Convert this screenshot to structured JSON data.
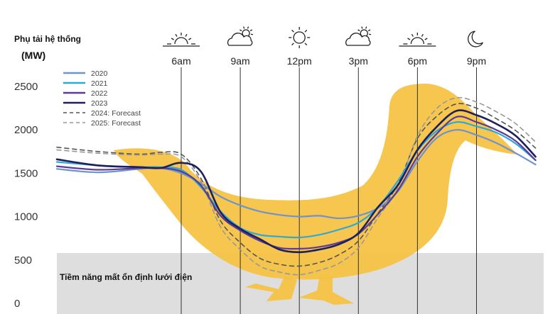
{
  "chart_data": {
    "type": "line",
    "ylabel": "Phụ tải hệ thống",
    "yunit": "(MW)",
    "ylim": [
      0,
      2600
    ],
    "yticks": [
      0,
      500,
      1000,
      1500,
      2000,
      2500
    ],
    "time_markers": [
      {
        "label": "6am",
        "hour": 6,
        "icon": "sunrise-icon"
      },
      {
        "label": "9am",
        "hour": 9,
        "icon": "partly-cloudy-icon"
      },
      {
        "label": "12pm",
        "hour": 12,
        "icon": "sun-icon"
      },
      {
        "label": "3pm",
        "hour": 15,
        "icon": "partly-cloudy-icon"
      },
      {
        "label": "6pm",
        "hour": 18,
        "icon": "sunset-icon"
      },
      {
        "label": "9pm",
        "hour": 21,
        "icon": "moon-icon"
      }
    ],
    "x_hours": [
      0,
      2,
      4,
      5,
      6,
      7,
      8,
      9,
      10,
      11,
      12,
      13,
      14,
      15,
      16,
      17,
      18,
      19,
      20,
      21,
      22,
      23,
      24
    ],
    "series": [
      {
        "name": "2020",
        "color": "#6f93cc",
        "dashed": false,
        "width": 2.2,
        "values": [
          1550,
          1510,
          1550,
          1560,
          1500,
          1380,
          1230,
          1130,
          1060,
          1020,
          1000,
          1010,
          980,
          1010,
          1100,
          1290,
          1640,
          1910,
          2000,
          1940,
          1850,
          1730,
          1600
        ]
      },
      {
        "name": "2021",
        "color": "#2ea9d6",
        "dashed": false,
        "width": 2.2,
        "values": [
          1630,
          1590,
          1570,
          1570,
          1540,
          1340,
          1060,
          870,
          790,
          770,
          760,
          790,
          850,
          930,
          1110,
          1410,
          1760,
          1990,
          2090,
          2040,
          1970,
          1840,
          1650
        ]
      },
      {
        "name": "2022",
        "color": "#5b3b95",
        "dashed": false,
        "width": 2.2,
        "values": [
          1580,
          1540,
          1560,
          1560,
          1520,
          1360,
          1010,
          840,
          720,
          640,
          630,
          650,
          700,
          800,
          1030,
          1300,
          1690,
          1960,
          2150,
          2090,
          2000,
          1870,
          1650
        ]
      },
      {
        "name": "2023",
        "color": "#1d1f5e",
        "dashed": false,
        "width": 2.6,
        "values": [
          1660,
          1590,
          1570,
          1560,
          1620,
          1520,
          1050,
          860,
          740,
          620,
          590,
          620,
          680,
          810,
          1110,
          1360,
          1770,
          2040,
          2220,
          2170,
          2070,
          1930,
          1690
        ]
      },
      {
        "name": "2024: Forecast",
        "color": "#555555",
        "dashed": true,
        "width": 1.6,
        "values": [
          1800,
          1750,
          1720,
          1740,
          1720,
          1440,
          950,
          700,
          520,
          450,
          430,
          470,
          560,
          720,
          1040,
          1370,
          1900,
          2160,
          2300,
          2250,
          2130,
          1990,
          1790
        ]
      },
      {
        "name": "2025: Forecast",
        "color": "#999999",
        "dashed": true,
        "width": 1.6,
        "values": [
          1770,
          1730,
          1710,
          1720,
          1690,
          1400,
          880,
          620,
          430,
          360,
          330,
          380,
          460,
          640,
          990,
          1330,
          1930,
          2250,
          2370,
          2320,
          2210,
          2070,
          1860
        ]
      }
    ],
    "grid": false,
    "legend_position": "top-left",
    "annotation": "Tiềm năng mất ổn định lưới điện",
    "band_range": [
      0,
      580
    ],
    "colors": {
      "duck": "#f5c242",
      "band": "#d6d6d6"
    }
  }
}
